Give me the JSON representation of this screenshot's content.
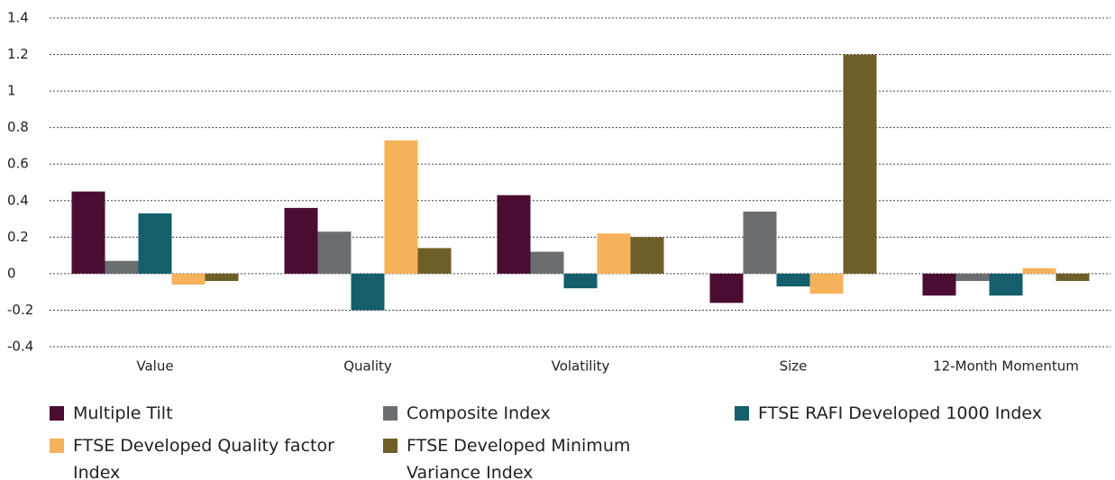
{
  "chart_data": {
    "type": "bar",
    "categories": [
      "Value",
      "Quality",
      "Volatility",
      "Size",
      "12-Month Momentum"
    ],
    "series": [
      {
        "name": "Multiple Tilt",
        "color": "#4a0d31",
        "values": [
          0.45,
          0.36,
          0.43,
          -0.16,
          -0.12
        ]
      },
      {
        "name": "Composite Index",
        "color": "#6b6e70",
        "values": [
          0.07,
          0.23,
          0.12,
          0.34,
          -0.04
        ]
      },
      {
        "name": "FTSE RAFI Developed 1000 Index",
        "color": "#155e6b",
        "values": [
          0.33,
          -0.2,
          -0.08,
          -0.07,
          -0.12
        ]
      },
      {
        "name": "FTSE Developed Quality factor Index",
        "color": "#f6b25a",
        "values": [
          -0.06,
          0.73,
          0.22,
          -0.11,
          0.03
        ]
      },
      {
        "name": "FTSE Developed Minimum Variance Index",
        "color": "#6e5e28",
        "values": [
          -0.04,
          0.14,
          0.2,
          1.2,
          -0.04
        ]
      }
    ],
    "ylim": [
      -0.4,
      1.4
    ],
    "yticks": [
      -0.4,
      -0.2,
      0,
      0.2,
      0.4,
      0.6,
      0.8,
      1,
      1.2,
      1.4
    ],
    "grid": true
  }
}
